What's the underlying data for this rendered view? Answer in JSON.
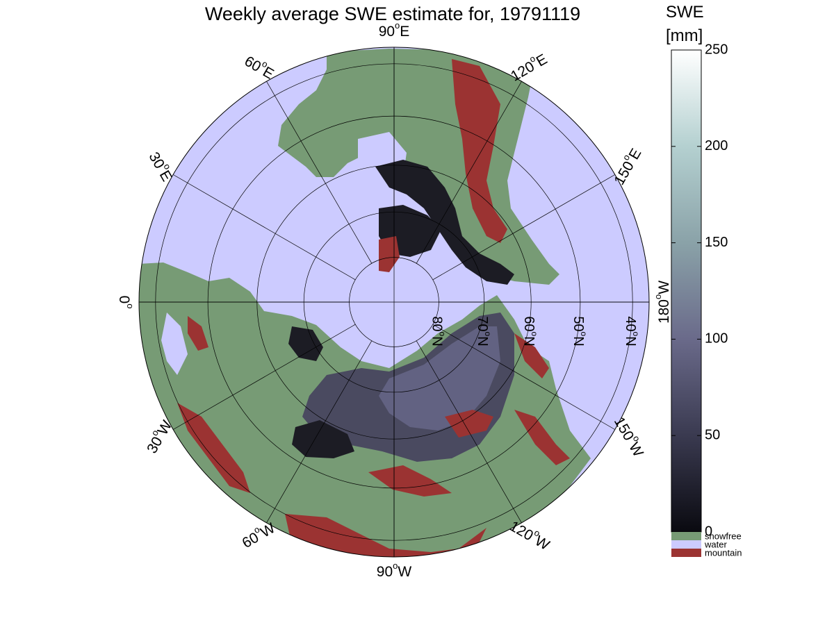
{
  "figure": {
    "title": "Weekly average SWE estimate for, 19791119"
  },
  "colorbar": {
    "label_line1": "SWE",
    "label_line2": "[mm]",
    "ticks": [
      0,
      50,
      100,
      150,
      200,
      250
    ],
    "range": [
      0,
      250
    ],
    "gradient_colors": [
      "#0a0a10",
      "#3a3a50",
      "#6a6a8a",
      "#8aa2a8",
      "#b4d0d0",
      "#ffffff"
    ],
    "categories": [
      {
        "label": "snowfree",
        "color": "#779b75"
      },
      {
        "label": "water",
        "color": "#cccbff"
      },
      {
        "label": "mountain",
        "color": "#9b3332"
      }
    ]
  },
  "map": {
    "projection": "north polar stereographic",
    "colors": {
      "water": "#cccbff",
      "land": "#779b75",
      "mountain": "#9b3332",
      "snow_dark": "#1c1c24",
      "snow_mid": "#4a4a60",
      "snow_light": "#626282"
    },
    "longitude_labels": [
      {
        "lon": -90,
        "text": "90",
        "suffix": "W"
      },
      {
        "lon": -120,
        "text": "120",
        "suffix": "W"
      },
      {
        "lon": -150,
        "text": "150",
        "suffix": "W"
      },
      {
        "lon": 180,
        "text": "180",
        "suffix": "W"
      },
      {
        "lon": 150,
        "text": "150",
        "suffix": "E"
      },
      {
        "lon": 120,
        "text": "120",
        "suffix": "E"
      },
      {
        "lon": 90,
        "text": "90",
        "suffix": "E"
      },
      {
        "lon": 60,
        "text": "60",
        "suffix": "E"
      },
      {
        "lon": 30,
        "text": "30",
        "suffix": "E"
      },
      {
        "lon": 0,
        "text": "0",
        "suffix": ""
      },
      {
        "lon": -30,
        "text": "30",
        "suffix": "W"
      },
      {
        "lon": -60,
        "text": "60",
        "suffix": "W"
      }
    ],
    "latitude_labels": [
      {
        "lat": 80,
        "text": "80",
        "suffix": "N"
      },
      {
        "lat": 70,
        "text": "70",
        "suffix": "N"
      },
      {
        "lat": 60,
        "text": "60",
        "suffix": "N"
      },
      {
        "lat": 50,
        "text": "50",
        "suffix": "N"
      },
      {
        "lat": 40,
        "text": "40",
        "suffix": "N"
      }
    ],
    "degree_symbol": "o"
  }
}
